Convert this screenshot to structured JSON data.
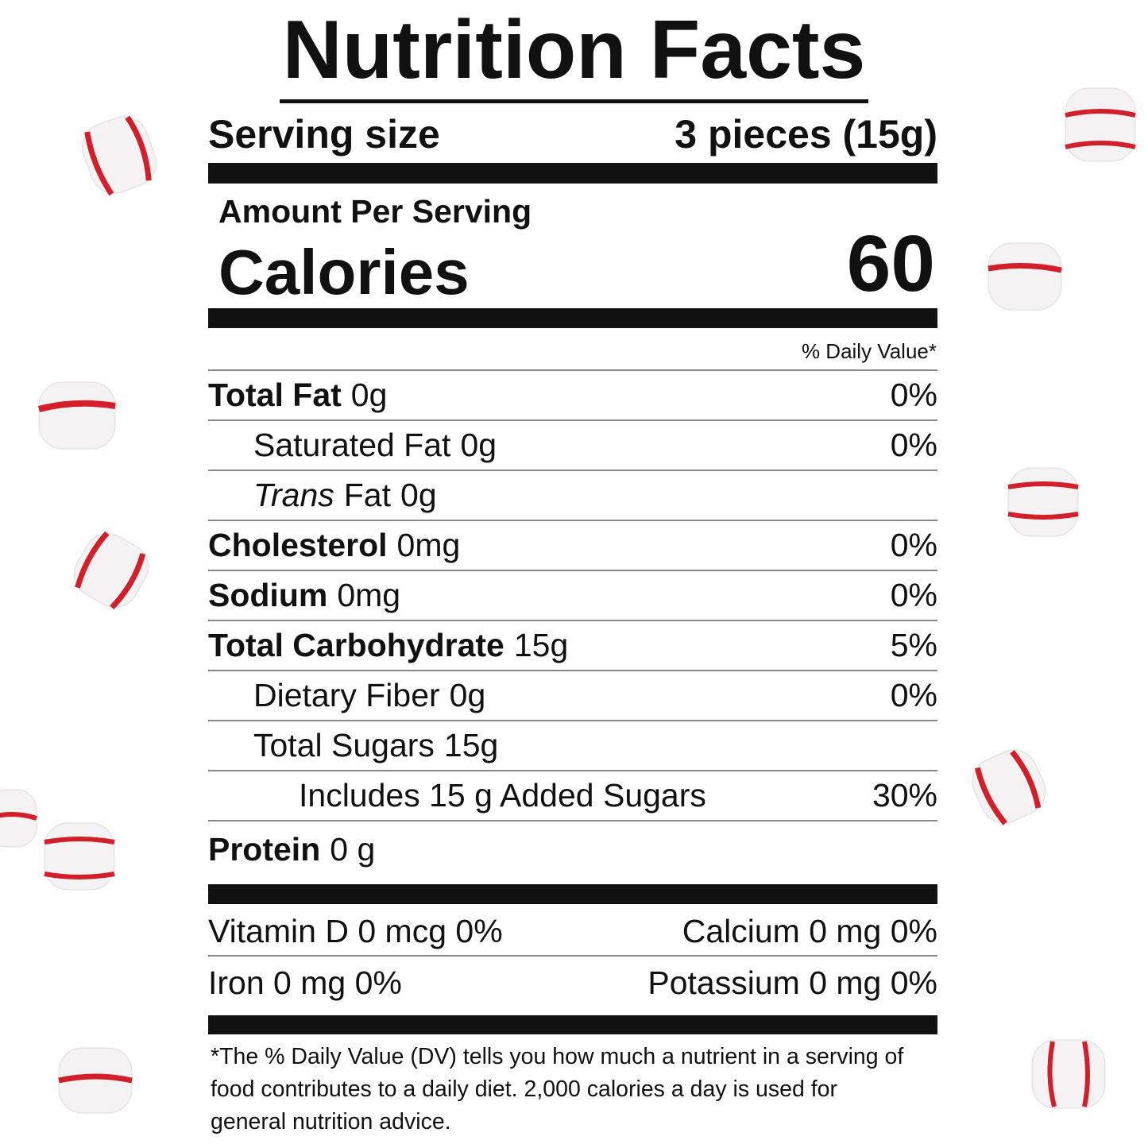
{
  "title": "Nutrition Facts",
  "serving": {
    "label": "Serving size",
    "value": "3 pieces (15g)"
  },
  "amount_per_serving": "Amount Per Serving",
  "calories": {
    "label": "Calories",
    "value": 60
  },
  "daily_value_header": "% Daily Value*",
  "nutrients": [
    {
      "name": "Total Fat",
      "amount": "0g",
      "dv": "0%",
      "sub": [
        {
          "name": "Saturated Fat",
          "amount": "0g",
          "dv": "0%"
        },
        {
          "emphasis": "Trans",
          "name": "Fat",
          "amount": "0g"
        }
      ]
    },
    {
      "name": "Cholesterol",
      "amount": "0mg",
      "dv": "0%"
    },
    {
      "name": "Sodium",
      "amount": "0mg",
      "dv": "0%"
    },
    {
      "name": "Total Carbohydrate",
      "amount": "15g",
      "dv": "5%",
      "sub": [
        {
          "name": "Dietary Fiber",
          "amount": "0g",
          "dv": "0%"
        },
        {
          "name": "Total Sugars",
          "amount": "15g",
          "sub": [
            {
              "name": "Includes 15 g Added Sugars",
              "dv": "30%"
            }
          ]
        }
      ]
    },
    {
      "name": "Protein",
      "amount": "0 g"
    }
  ],
  "vitamins": [
    [
      "Vitamin D 0 mcg 0%",
      "Calcium 0 mg 0%"
    ],
    [
      "Iron 0 mg 0%",
      "Potassium 0 mg 0%"
    ]
  ],
  "footnote": "*The % Daily Value (DV) tells you how much a nutrient in a serving of food contributes to a daily diet. 2,000 calories a day is used for general nutrition advice."
}
